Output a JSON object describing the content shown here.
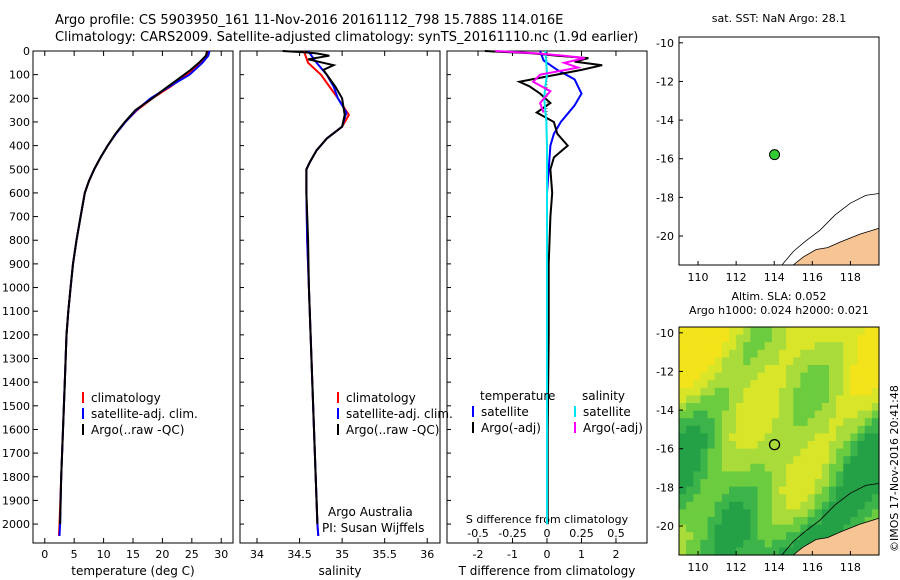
{
  "title": {
    "line1": "Argo profile: CS 5903950_161 11-Nov-2016 20161112_798 15.788S 114.016E",
    "line2": "Climatology: CARS2009. Satellite-adjusted climatology: synTS_20161110.nc (1.9d earlier)"
  },
  "depth_ticks": [
    0,
    100,
    200,
    300,
    400,
    500,
    600,
    700,
    800,
    900,
    1000,
    1100,
    1200,
    1300,
    1400,
    1500,
    1600,
    1700,
    1800,
    1900,
    2000
  ],
  "colors": {
    "climatology": "#ff0000",
    "satellite": "#0000ff",
    "argo": "#000000",
    "sal_sat": "#00e5ee",
    "sal_argo": "#ff00ff",
    "land": "#f7c493"
  },
  "chart_data": [
    {
      "type": "line",
      "name": "temperature-panel",
      "xlabel": "temperature (deg C)",
      "xlim": [
        -2,
        32
      ],
      "ylim": [
        2080,
        0
      ],
      "xticks": [
        0,
        5,
        10,
        15,
        20,
        25,
        30
      ],
      "legend": {
        "position": "bottom-left",
        "items": [
          "climatology",
          "satellite-adj. clim.",
          "Argo(..raw -QC)"
        ]
      },
      "series": [
        {
          "name": "climatology",
          "color": "#ff0000",
          "points": [
            [
              27.8,
              0
            ],
            [
              27.5,
              20
            ],
            [
              26.4,
              50
            ],
            [
              24.2,
              100
            ],
            [
              21.4,
              150
            ],
            [
              18.3,
              200
            ],
            [
              15.7,
              250
            ],
            [
              13.7,
              300
            ],
            [
              12.1,
              350
            ],
            [
              10.7,
              400
            ],
            [
              9.5,
              450
            ],
            [
              8.4,
              500
            ],
            [
              7.5,
              550
            ],
            [
              6.8,
              600
            ],
            [
              6.1,
              700
            ],
            [
              5.4,
              800
            ],
            [
              4.8,
              900
            ],
            [
              4.4,
              1000
            ],
            [
              4.0,
              1100
            ],
            [
              3.7,
              1200
            ],
            [
              3.4,
              1400
            ],
            [
              3.1,
              1600
            ],
            [
              2.8,
              1800
            ],
            [
              2.5,
              2000
            ],
            [
              2.4,
              2050
            ]
          ]
        },
        {
          "name": "satellite-adj. clim.",
          "color": "#0000ff",
          "points": [
            [
              28.0,
              0
            ],
            [
              27.8,
              20
            ],
            [
              26.8,
              50
            ],
            [
              24.6,
              100
            ],
            [
              21.2,
              150
            ],
            [
              18.0,
              200
            ],
            [
              15.6,
              250
            ],
            [
              13.7,
              300
            ],
            [
              12.1,
              350
            ],
            [
              10.7,
              400
            ],
            [
              9.5,
              450
            ],
            [
              8.4,
              500
            ],
            [
              7.5,
              550
            ],
            [
              6.8,
              600
            ],
            [
              6.1,
              700
            ],
            [
              5.4,
              800
            ],
            [
              4.8,
              900
            ],
            [
              4.4,
              1000
            ],
            [
              4.0,
              1100
            ],
            [
              3.7,
              1200
            ],
            [
              3.4,
              1400
            ],
            [
              3.1,
              1600
            ],
            [
              2.8,
              1800
            ],
            [
              2.6,
              2000
            ],
            [
              2.5,
              2050
            ]
          ]
        },
        {
          "name": "Argo(..raw -QC)",
          "color": "#000000",
          "points": [
            [
              27.6,
              0
            ],
            [
              27.4,
              20
            ],
            [
              26.2,
              50
            ],
            [
              24.8,
              80
            ],
            [
              22.6,
              120
            ],
            [
              20.4,
              160
            ],
            [
              18.3,
              200
            ],
            [
              15.4,
              250
            ],
            [
              13.6,
              300
            ],
            [
              12.0,
              350
            ],
            [
              10.7,
              400
            ],
            [
              9.5,
              450
            ],
            [
              8.4,
              500
            ],
            [
              7.5,
              550
            ],
            [
              6.8,
              600
            ],
            [
              6.1,
              700
            ],
            [
              5.4,
              800
            ],
            [
              4.8,
              900
            ],
            [
              4.4,
              1000
            ],
            [
              4.0,
              1100
            ],
            [
              3.7,
              1200
            ],
            [
              3.4,
              1400
            ],
            [
              3.1,
              1600
            ],
            [
              2.8,
              1800
            ],
            [
              2.6,
              2000
            ]
          ]
        }
      ]
    },
    {
      "type": "line",
      "name": "salinity-panel",
      "xlabel": "salinity",
      "xlim": [
        33.8,
        36.15
      ],
      "ylim": [
        2080,
        0
      ],
      "xticks": [
        34,
        34.5,
        35,
        35.5,
        36
      ],
      "legend": {
        "position": "bottom-left",
        "items": [
          "climatology",
          "satellite-adj. clim.",
          "Argo(..raw -QC)"
        ]
      },
      "annotation": [
        "Argo Australia",
        "PI: Susan Wijffels"
      ],
      "series": [
        {
          "name": "climatology",
          "color": "#ff0000",
          "points": [
            [
              34.55,
              0
            ],
            [
              34.6,
              50
            ],
            [
              34.75,
              100
            ],
            [
              34.85,
              150
            ],
            [
              34.95,
              200
            ],
            [
              35.08,
              270
            ],
            [
              35.0,
              320
            ],
            [
              34.82,
              370
            ],
            [
              34.7,
              420
            ],
            [
              34.62,
              470
            ],
            [
              34.58,
              500
            ],
            [
              34.58,
              600
            ],
            [
              34.59,
              800
            ],
            [
              34.61,
              1000
            ],
            [
              34.63,
              1200
            ],
            [
              34.65,
              1400
            ],
            [
              34.67,
              1600
            ],
            [
              34.69,
              1800
            ],
            [
              34.71,
              2000
            ],
            [
              34.72,
              2050
            ]
          ]
        },
        {
          "name": "satellite-adj. clim.",
          "color": "#0000ff",
          "points": [
            [
              34.6,
              0
            ],
            [
              34.7,
              50
            ],
            [
              34.82,
              100
            ],
            [
              34.9,
              150
            ],
            [
              34.95,
              200
            ],
            [
              35.05,
              260
            ],
            [
              35.0,
              320
            ],
            [
              34.82,
              370
            ],
            [
              34.7,
              420
            ],
            [
              34.62,
              470
            ],
            [
              34.58,
              500
            ],
            [
              34.58,
              600
            ],
            [
              34.59,
              800
            ],
            [
              34.61,
              1000
            ],
            [
              34.63,
              1200
            ],
            [
              34.65,
              1400
            ],
            [
              34.67,
              1600
            ],
            [
              34.69,
              1800
            ],
            [
              34.71,
              2000
            ],
            [
              34.72,
              2050
            ]
          ]
        },
        {
          "name": "Argo(..raw -QC)",
          "color": "#000000",
          "points": [
            [
              34.3,
              0
            ],
            [
              34.55,
              5
            ],
            [
              34.7,
              10
            ],
            [
              34.85,
              20
            ],
            [
              34.6,
              35
            ],
            [
              34.9,
              60
            ],
            [
              34.78,
              80
            ],
            [
              34.82,
              100
            ],
            [
              34.92,
              150
            ],
            [
              35.0,
              200
            ],
            [
              35.03,
              270
            ],
            [
              35.0,
              320
            ],
            [
              34.82,
              370
            ],
            [
              34.7,
              420
            ],
            [
              34.62,
              470
            ],
            [
              34.58,
              500
            ],
            [
              34.58,
              600
            ],
            [
              34.6,
              800
            ],
            [
              34.61,
              1000
            ],
            [
              34.63,
              1200
            ],
            [
              34.65,
              1400
            ],
            [
              34.67,
              1600
            ],
            [
              34.69,
              1800
            ],
            [
              34.71,
              2000
            ]
          ]
        }
      ]
    },
    {
      "type": "line",
      "name": "difference-panel",
      "xlabel": "T difference from climatology",
      "xlabel_top": "S difference from climatology",
      "xlim": [
        -2.9,
        2.9
      ],
      "ylim": [
        2080,
        0
      ],
      "xticks": [
        -2,
        -1,
        0,
        1,
        2
      ],
      "xticks_s": [
        -0.5,
        -0.25,
        0,
        0.25,
        0.5
      ],
      "legend": {
        "position": "bottom-left",
        "temperature_title": "temperature",
        "salinity_title": "salinity",
        "items": [
          "satellite",
          "Argo(-adj)"
        ]
      },
      "series": [
        {
          "name": "T satellite",
          "color": "#0000ff",
          "points": [
            [
              -0.2,
              0
            ],
            [
              -0.1,
              40
            ],
            [
              0.3,
              80
            ],
            [
              0.8,
              120
            ],
            [
              1.0,
              180
            ],
            [
              0.8,
              230
            ],
            [
              0.4,
              300
            ],
            [
              0.2,
              350
            ],
            [
              0.1,
              400
            ],
            [
              0.05,
              500
            ],
            [
              0,
              600
            ],
            [
              0,
              1000
            ],
            [
              0,
              1500
            ],
            [
              0,
              2000
            ]
          ]
        },
        {
          "name": "T Argo(-adj)",
          "color": "#000000",
          "points": [
            [
              -1.8,
              0
            ],
            [
              -0.4,
              10
            ],
            [
              0.3,
              20
            ],
            [
              1.2,
              30
            ],
            [
              0.8,
              45
            ],
            [
              1.6,
              60
            ],
            [
              1.0,
              80
            ],
            [
              -0.8,
              130
            ],
            [
              -0.5,
              150
            ],
            [
              -0.2,
              180
            ],
            [
              0.1,
              220
            ],
            [
              -0.3,
              260
            ],
            [
              0.2,
              300
            ],
            [
              0.3,
              350
            ],
            [
              0.6,
              400
            ],
            [
              0.2,
              450
            ],
            [
              0.1,
              500
            ],
            [
              0.15,
              600
            ],
            [
              0.1,
              700
            ],
            [
              0.05,
              900
            ],
            [
              0.05,
              1200
            ],
            [
              0.02,
              1600
            ],
            [
              0.02,
              2000
            ]
          ]
        },
        {
          "name": "S satellite",
          "color": "#00e5ee",
          "points": [
            [
              -0.05,
              0
            ],
            [
              -0.02,
              50
            ],
            [
              0.0,
              100
            ],
            [
              -0.05,
              150
            ],
            [
              -0.08,
              200
            ],
            [
              -0.05,
              250
            ],
            [
              -0.02,
              300
            ],
            [
              0,
              400
            ],
            [
              0,
              600
            ],
            [
              0,
              1000
            ],
            [
              0,
              1500
            ],
            [
              0,
              2000
            ]
          ]
        },
        {
          "name": "S Argo(-adj)",
          "color": "#ff00ff",
          "points": [
            [
              -1.5,
              0
            ],
            [
              -0.3,
              10
            ],
            [
              0.5,
              20
            ],
            [
              1.1,
              30
            ],
            [
              0.5,
              50
            ],
            [
              0.9,
              70
            ],
            [
              -0.2,
              100
            ],
            [
              -0.4,
              130
            ],
            [
              0.1,
              170
            ],
            [
              -0.2,
              220
            ],
            [
              -0.1,
              260
            ]
          ]
        }
      ]
    },
    {
      "type": "map",
      "name": "sst-map",
      "title": "sat. SST: NaN Argo: 28.1",
      "xlim": [
        109,
        119.5
      ],
      "ylim": [
        -21.5,
        -9.7
      ],
      "xticks": [
        110,
        112,
        114,
        116,
        118
      ],
      "yticks": [
        -10,
        -12,
        -14,
        -16,
        -18,
        -20
      ],
      "argo_position": {
        "lon": 114.016,
        "lat": -15.788
      },
      "marker_color": "#33cc33"
    },
    {
      "type": "heatmap",
      "name": "sla-map",
      "title_line1": "Altim. SLA: 0.052",
      "title_line2": "Argo h1000: 0.024 h2000: 0.021",
      "xlim": [
        109,
        119.5
      ],
      "ylim": [
        -21.5,
        -9.7
      ],
      "xticks": [
        110,
        112,
        114,
        116,
        118
      ],
      "yticks": [
        -10,
        -12,
        -14,
        -16,
        -18,
        -20
      ],
      "argo_position": {
        "lon": 114.016,
        "lat": -15.788
      }
    }
  ],
  "footer_stamp": "©IMOS 17-Nov-2016 20:41:48"
}
